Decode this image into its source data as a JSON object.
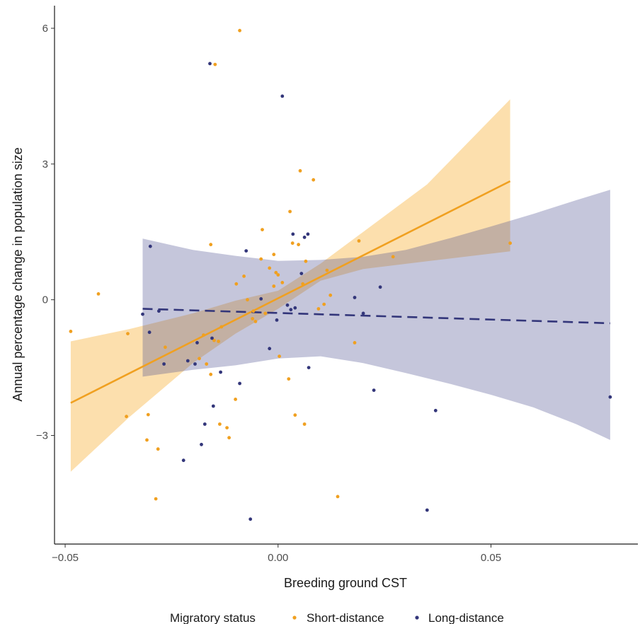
{
  "chart_data": {
    "type": "scatter",
    "xlabel": "Breeding ground CST",
    "ylabel": "Annual percentage change in population size",
    "xlim": [
      -0.0525,
      0.0845
    ],
    "ylim": [
      -5.4,
      6.5
    ],
    "x_ticks": [
      -0.05,
      0.0,
      0.05
    ],
    "x_tick_labels": [
      "−0.05",
      "0.00",
      "0.05"
    ],
    "y_ticks": [
      -3,
      0,
      3,
      6
    ],
    "y_tick_labels": [
      "−3",
      "0",
      "3",
      "6"
    ],
    "grid": false,
    "legend": {
      "title": "Migratory status",
      "position": "bottom",
      "entries": [
        "Short-distance",
        "Long-distance"
      ]
    },
    "colors": {
      "short": "#f0a020",
      "long": "#33367a"
    },
    "series": [
      {
        "name": "Short-distance",
        "color": "#f0a020",
        "points": [
          [
            -0.0487,
            -0.7
          ],
          [
            -0.0422,
            0.13
          ],
          [
            -0.0353,
            -0.75
          ],
          [
            -0.0356,
            -2.58
          ],
          [
            -0.0305,
            -2.54
          ],
          [
            -0.0308,
            -3.1
          ],
          [
            -0.0282,
            -3.3
          ],
          [
            -0.0287,
            -4.4
          ],
          [
            -0.0265,
            -1.05
          ],
          [
            -0.0185,
            -1.3
          ],
          [
            -0.0175,
            -0.78
          ],
          [
            -0.0168,
            -1.42
          ],
          [
            -0.0158,
            -1.65
          ],
          [
            -0.015,
            -0.9
          ],
          [
            -0.014,
            -0.92
          ],
          [
            -0.0133,
            -0.6
          ],
          [
            -0.0158,
            1.22
          ],
          [
            -0.0148,
            5.2
          ],
          [
            -0.0137,
            -2.75
          ],
          [
            -0.012,
            -2.83
          ],
          [
            -0.0115,
            -3.05
          ],
          [
            -0.01,
            -2.2
          ],
          [
            -0.0098,
            0.35
          ],
          [
            -0.009,
            5.95
          ],
          [
            -0.008,
            0.52
          ],
          [
            -0.0072,
            0.0
          ],
          [
            -0.006,
            -0.42
          ],
          [
            -0.0058,
            -0.25
          ],
          [
            -0.0053,
            -0.48
          ],
          [
            -0.004,
            0.9
          ],
          [
            -0.0037,
            1.55
          ],
          [
            -0.003,
            -0.3
          ],
          [
            -0.002,
            0.7
          ],
          [
            -0.001,
            1.0
          ],
          [
            -0.0005,
            0.6
          ],
          [
            -0.001,
            0.3
          ],
          [
            0.0003,
            -1.25
          ],
          [
            0.0,
            0.55
          ],
          [
            0.001,
            0.38
          ],
          [
            0.0028,
            1.95
          ],
          [
            0.0025,
            -1.75
          ],
          [
            0.0034,
            1.25
          ],
          [
            0.004,
            -2.55
          ],
          [
            0.0048,
            1.22
          ],
          [
            0.0052,
            2.85
          ],
          [
            0.0058,
            0.35
          ],
          [
            0.0062,
            -2.75
          ],
          [
            0.0065,
            0.85
          ],
          [
            0.0083,
            2.65
          ],
          [
            0.0095,
            -0.2
          ],
          [
            0.0108,
            -0.1
          ],
          [
            0.0115,
            0.65
          ],
          [
            0.0123,
            0.1
          ],
          [
            0.014,
            -4.35
          ],
          [
            0.018,
            -0.95
          ],
          [
            0.019,
            1.3
          ],
          [
            0.027,
            0.95
          ],
          [
            0.0545,
            1.25
          ]
        ],
        "fit": {
          "x": [
            -0.0487,
            0.0545
          ],
          "y": [
            -2.28,
            2.62
          ],
          "style": "solid"
        },
        "ci_band": {
          "x": [
            -0.0487,
            -0.035,
            -0.02,
            -0.01,
            0.0,
            0.01,
            0.02,
            0.035,
            0.0545
          ],
          "lower": [
            -3.8,
            -2.6,
            -1.4,
            -0.75,
            -0.2,
            0.42,
            0.68,
            0.85,
            1.07
          ],
          "upper": [
            -0.92,
            -0.65,
            -0.3,
            -0.02,
            0.2,
            0.8,
            1.5,
            2.55,
            4.43
          ]
        }
      },
      {
        "name": "Long-distance",
        "color": "#33367a",
        "points": [
          [
            -0.0318,
            -0.32
          ],
          [
            -0.03,
            1.18
          ],
          [
            -0.0302,
            -0.72
          ],
          [
            -0.0268,
            -1.42
          ],
          [
            -0.028,
            -0.25
          ],
          [
            -0.0222,
            -3.55
          ],
          [
            -0.0212,
            -1.35
          ],
          [
            -0.0195,
            -1.42
          ],
          [
            -0.019,
            -0.95
          ],
          [
            -0.018,
            -3.2
          ],
          [
            -0.0172,
            -2.75
          ],
          [
            -0.016,
            5.22
          ],
          [
            -0.0155,
            -0.85
          ],
          [
            -0.0152,
            -2.35
          ],
          [
            -0.0135,
            -1.6
          ],
          [
            -0.009,
            -1.85
          ],
          [
            -0.0075,
            1.08
          ],
          [
            -0.0065,
            -4.85
          ],
          [
            -0.004,
            0.02
          ],
          [
            -0.002,
            -1.08
          ],
          [
            -0.0003,
            -0.45
          ],
          [
            0.001,
            4.5
          ],
          [
            0.0022,
            -0.12
          ],
          [
            0.003,
            -0.22
          ],
          [
            0.0035,
            1.45
          ],
          [
            0.004,
            -0.18
          ],
          [
            0.0055,
            0.58
          ],
          [
            0.0062,
            1.38
          ],
          [
            0.007,
            1.45
          ],
          [
            0.0072,
            -1.5
          ],
          [
            0.018,
            0.05
          ],
          [
            0.02,
            -0.3
          ],
          [
            0.0225,
            -2.0
          ],
          [
            0.024,
            0.28
          ],
          [
            0.035,
            -4.65
          ],
          [
            0.037,
            -2.45
          ],
          [
            0.078,
            -2.15
          ]
        ],
        "fit": {
          "x": [
            -0.0318,
            0.078
          ],
          "y": [
            -0.2,
            -0.52
          ],
          "style": "dashed"
        },
        "ci_band": {
          "x": [
            -0.0318,
            -0.02,
            -0.01,
            0.0,
            0.01,
            0.02,
            0.03,
            0.04,
            0.05,
            0.06,
            0.07,
            0.078
          ],
          "lower": [
            -1.7,
            -1.55,
            -1.45,
            -1.3,
            -1.25,
            -1.4,
            -1.62,
            -1.85,
            -2.1,
            -2.38,
            -2.75,
            -3.1
          ],
          "upper": [
            1.35,
            1.1,
            0.97,
            0.86,
            0.88,
            0.95,
            1.1,
            1.35,
            1.62,
            1.9,
            2.2,
            2.43
          ]
        }
      }
    ]
  }
}
